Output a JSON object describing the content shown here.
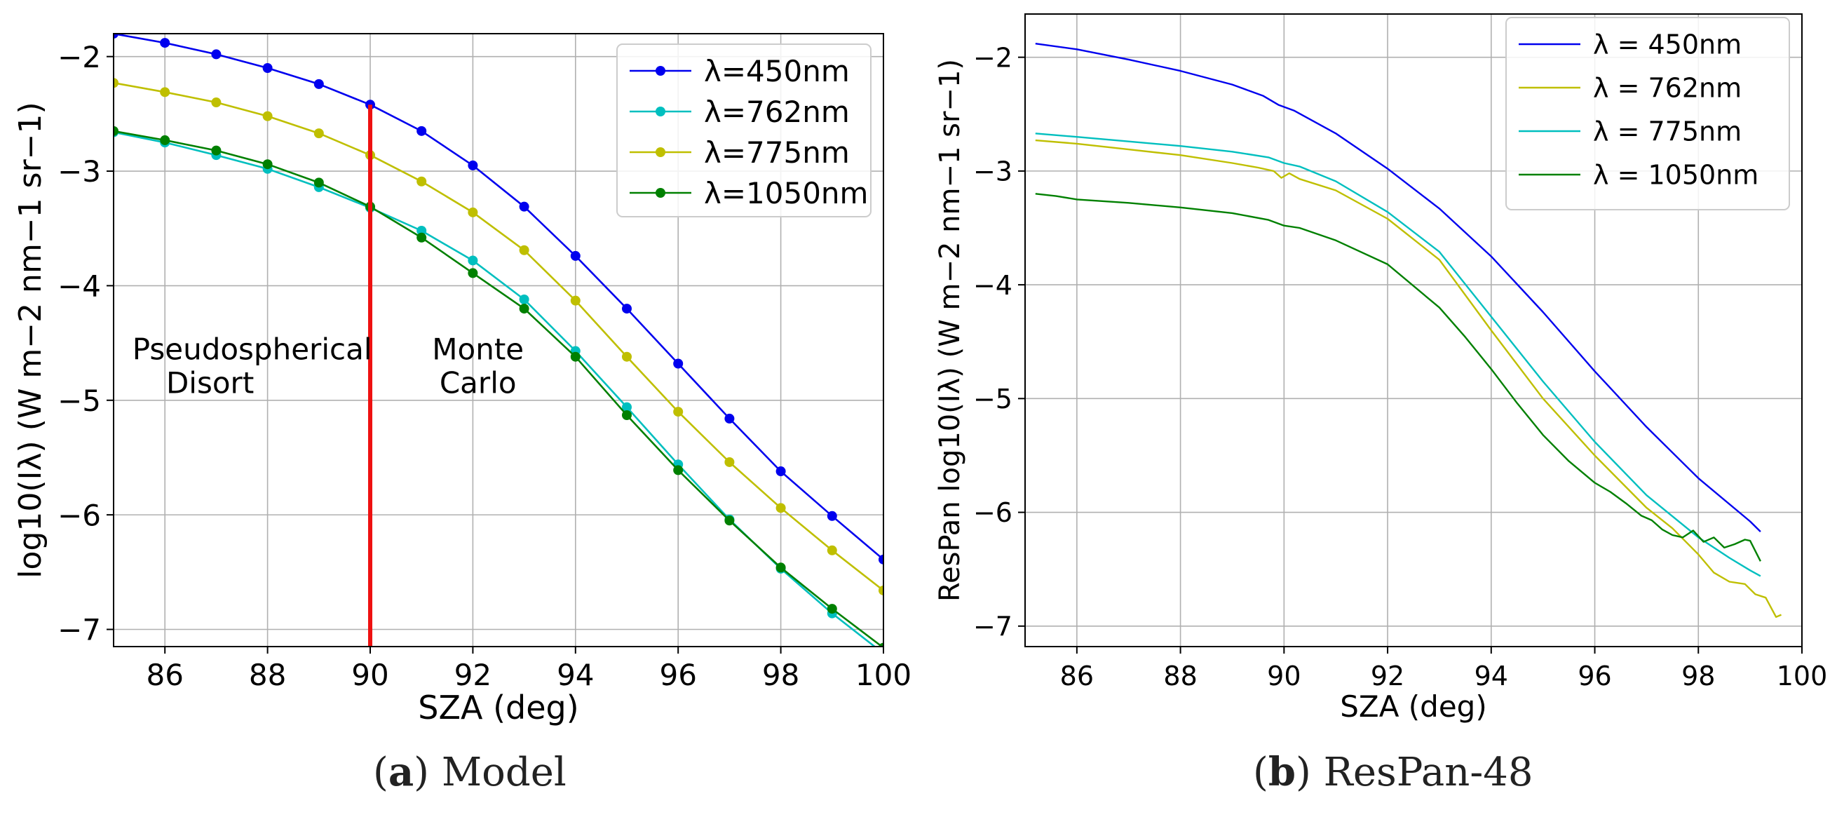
{
  "chart_data": [
    {
      "type": "line",
      "panel": "a",
      "caption_letter": "a",
      "caption_text": "Model",
      "xlabel": "SZA (deg)",
      "ylabel": "log10(Iλ) (W m−2 nm−1 sr−1)",
      "xlim": [
        85,
        100
      ],
      "ylim": [
        -7.15,
        -1.8
      ],
      "xticks": [
        "86",
        "88",
        "90",
        "92",
        "94",
        "96",
        "98",
        "100"
      ],
      "yticks": [
        "−2",
        "−3",
        "−4",
        "−5",
        "−6",
        "−7"
      ],
      "grid": true,
      "legend_position": "top-right",
      "markers": true,
      "x": [
        85,
        86,
        87,
        88,
        89,
        90,
        91,
        92,
        93,
        94,
        95,
        96,
        97,
        98,
        99,
        100
      ],
      "series": [
        {
          "name": "λ=450nm",
          "color": "#0000ee",
          "values": [
            -1.8,
            -1.88,
            -1.98,
            -2.1,
            -2.24,
            -2.42,
            -2.65,
            -2.95,
            -3.31,
            -3.74,
            -4.2,
            -4.68,
            -5.16,
            -5.62,
            -6.01,
            -6.39
          ]
        },
        {
          "name": "λ=762nm",
          "color": "#00bfbf",
          "values": [
            -2.66,
            -2.75,
            -2.86,
            -2.98,
            -3.14,
            -3.32,
            -3.52,
            -3.78,
            -4.12,
            -4.57,
            -5.06,
            -5.56,
            -6.04,
            -6.47,
            -6.86,
            -7.21
          ]
        },
        {
          "name": "λ=775nm",
          "color": "#bfbf00",
          "values": [
            -2.23,
            -2.31,
            -2.4,
            -2.52,
            -2.67,
            -2.86,
            -3.09,
            -3.36,
            -3.69,
            -4.13,
            -4.62,
            -5.1,
            -5.54,
            -5.94,
            -6.31,
            -6.66
          ]
        },
        {
          "name": "λ=1050nm",
          "color": "#008000",
          "values": [
            -2.65,
            -2.73,
            -2.82,
            -2.94,
            -3.1,
            -3.31,
            -3.58,
            -3.89,
            -4.2,
            -4.62,
            -5.13,
            -5.61,
            -6.05,
            -6.46,
            -6.82,
            -7.16
          ]
        }
      ],
      "vline": {
        "x": 90,
        "color": "#ee1111"
      },
      "annotations": [
        {
          "lines": [
            "Pseudospherical",
            "Disort"
          ],
          "x": 87.7,
          "y": -4.9,
          "align": "center"
        },
        {
          "lines": [
            "Monte",
            "Carlo"
          ],
          "x": 92.1,
          "y": -4.9,
          "align": "center"
        }
      ]
    },
    {
      "type": "line",
      "panel": "b",
      "caption_letter": "b",
      "caption_text": "ResPan-48",
      "xlabel": "SZA (deg)",
      "ylabel": "ResPan log10(Iλ) (W m−2 nm−1 sr−1)",
      "xlim": [
        85,
        100
      ],
      "ylim": [
        -7.18,
        -1.62
      ],
      "xticks": [
        "86",
        "88",
        "90",
        "92",
        "94",
        "96",
        "98",
        "100"
      ],
      "yticks": [
        "−2",
        "−3",
        "−4",
        "−5",
        "−6",
        "−7"
      ],
      "grid": true,
      "legend_position": "top-right",
      "markers": false,
      "series": [
        {
          "name": "λ = 450nm",
          "color": "#0000ee",
          "x": [
            85.2,
            86,
            87,
            88,
            89,
            89.6,
            89.9,
            90.2,
            91,
            92,
            93,
            94,
            95,
            96,
            97,
            98,
            99,
            99.2
          ],
          "values": [
            -1.88,
            -1.93,
            -2.02,
            -2.12,
            -2.24,
            -2.34,
            -2.42,
            -2.47,
            -2.67,
            -2.98,
            -3.33,
            -3.75,
            -4.24,
            -4.76,
            -5.25,
            -5.7,
            -6.08,
            -6.17
          ]
        },
        {
          "name": "λ = 762nm",
          "color": "#bfbf00",
          "x": [
            85.2,
            86,
            87,
            88,
            89,
            89.5,
            89.8,
            89.95,
            90.1,
            90.3,
            91,
            92,
            93,
            94,
            95,
            96,
            97,
            97.5,
            98,
            98.3,
            98.6,
            98.9,
            99.1,
            99.3,
            99.5,
            99.6
          ],
          "values": [
            -2.73,
            -2.76,
            -2.81,
            -2.86,
            -2.93,
            -2.97,
            -3.0,
            -3.06,
            -3.02,
            -3.07,
            -3.17,
            -3.42,
            -3.78,
            -4.4,
            -5.0,
            -5.5,
            -5.96,
            -6.14,
            -6.37,
            -6.53,
            -6.61,
            -6.63,
            -6.72,
            -6.75,
            -6.92,
            -6.9
          ]
        },
        {
          "name": "λ = 775nm",
          "color": "#00bfbf",
          "x": [
            85.2,
            86,
            87,
            88,
            89,
            89.7,
            90,
            90.3,
            91,
            92,
            93,
            94,
            95,
            96,
            97,
            98,
            98.6,
            99,
            99.2
          ],
          "values": [
            -2.67,
            -2.7,
            -2.74,
            -2.78,
            -2.83,
            -2.88,
            -2.93,
            -2.96,
            -3.09,
            -3.36,
            -3.71,
            -4.28,
            -4.85,
            -5.38,
            -5.85,
            -6.22,
            -6.4,
            -6.51,
            -6.56
          ]
        },
        {
          "name": "λ = 1050nm",
          "color": "#008000",
          "x": [
            85.2,
            85.6,
            86,
            87,
            88,
            89,
            89.7,
            90,
            90.3,
            91,
            92,
            93,
            93.5,
            94,
            94.5,
            95,
            95.5,
            96,
            96.3,
            96.6,
            96.9,
            97.1,
            97.3,
            97.5,
            97.7,
            97.9,
            98.1,
            98.3,
            98.5,
            98.7,
            98.9,
            99,
            99.1,
            99.2
          ],
          "values": [
            -3.2,
            -3.22,
            -3.25,
            -3.28,
            -3.32,
            -3.37,
            -3.43,
            -3.48,
            -3.5,
            -3.61,
            -3.82,
            -4.2,
            -4.46,
            -4.74,
            -5.04,
            -5.32,
            -5.55,
            -5.74,
            -5.82,
            -5.92,
            -6.03,
            -6.07,
            -6.15,
            -6.2,
            -6.22,
            -6.16,
            -6.26,
            -6.22,
            -6.31,
            -6.28,
            -6.24,
            -6.25,
            -6.34,
            -6.43
          ]
        }
      ]
    }
  ]
}
